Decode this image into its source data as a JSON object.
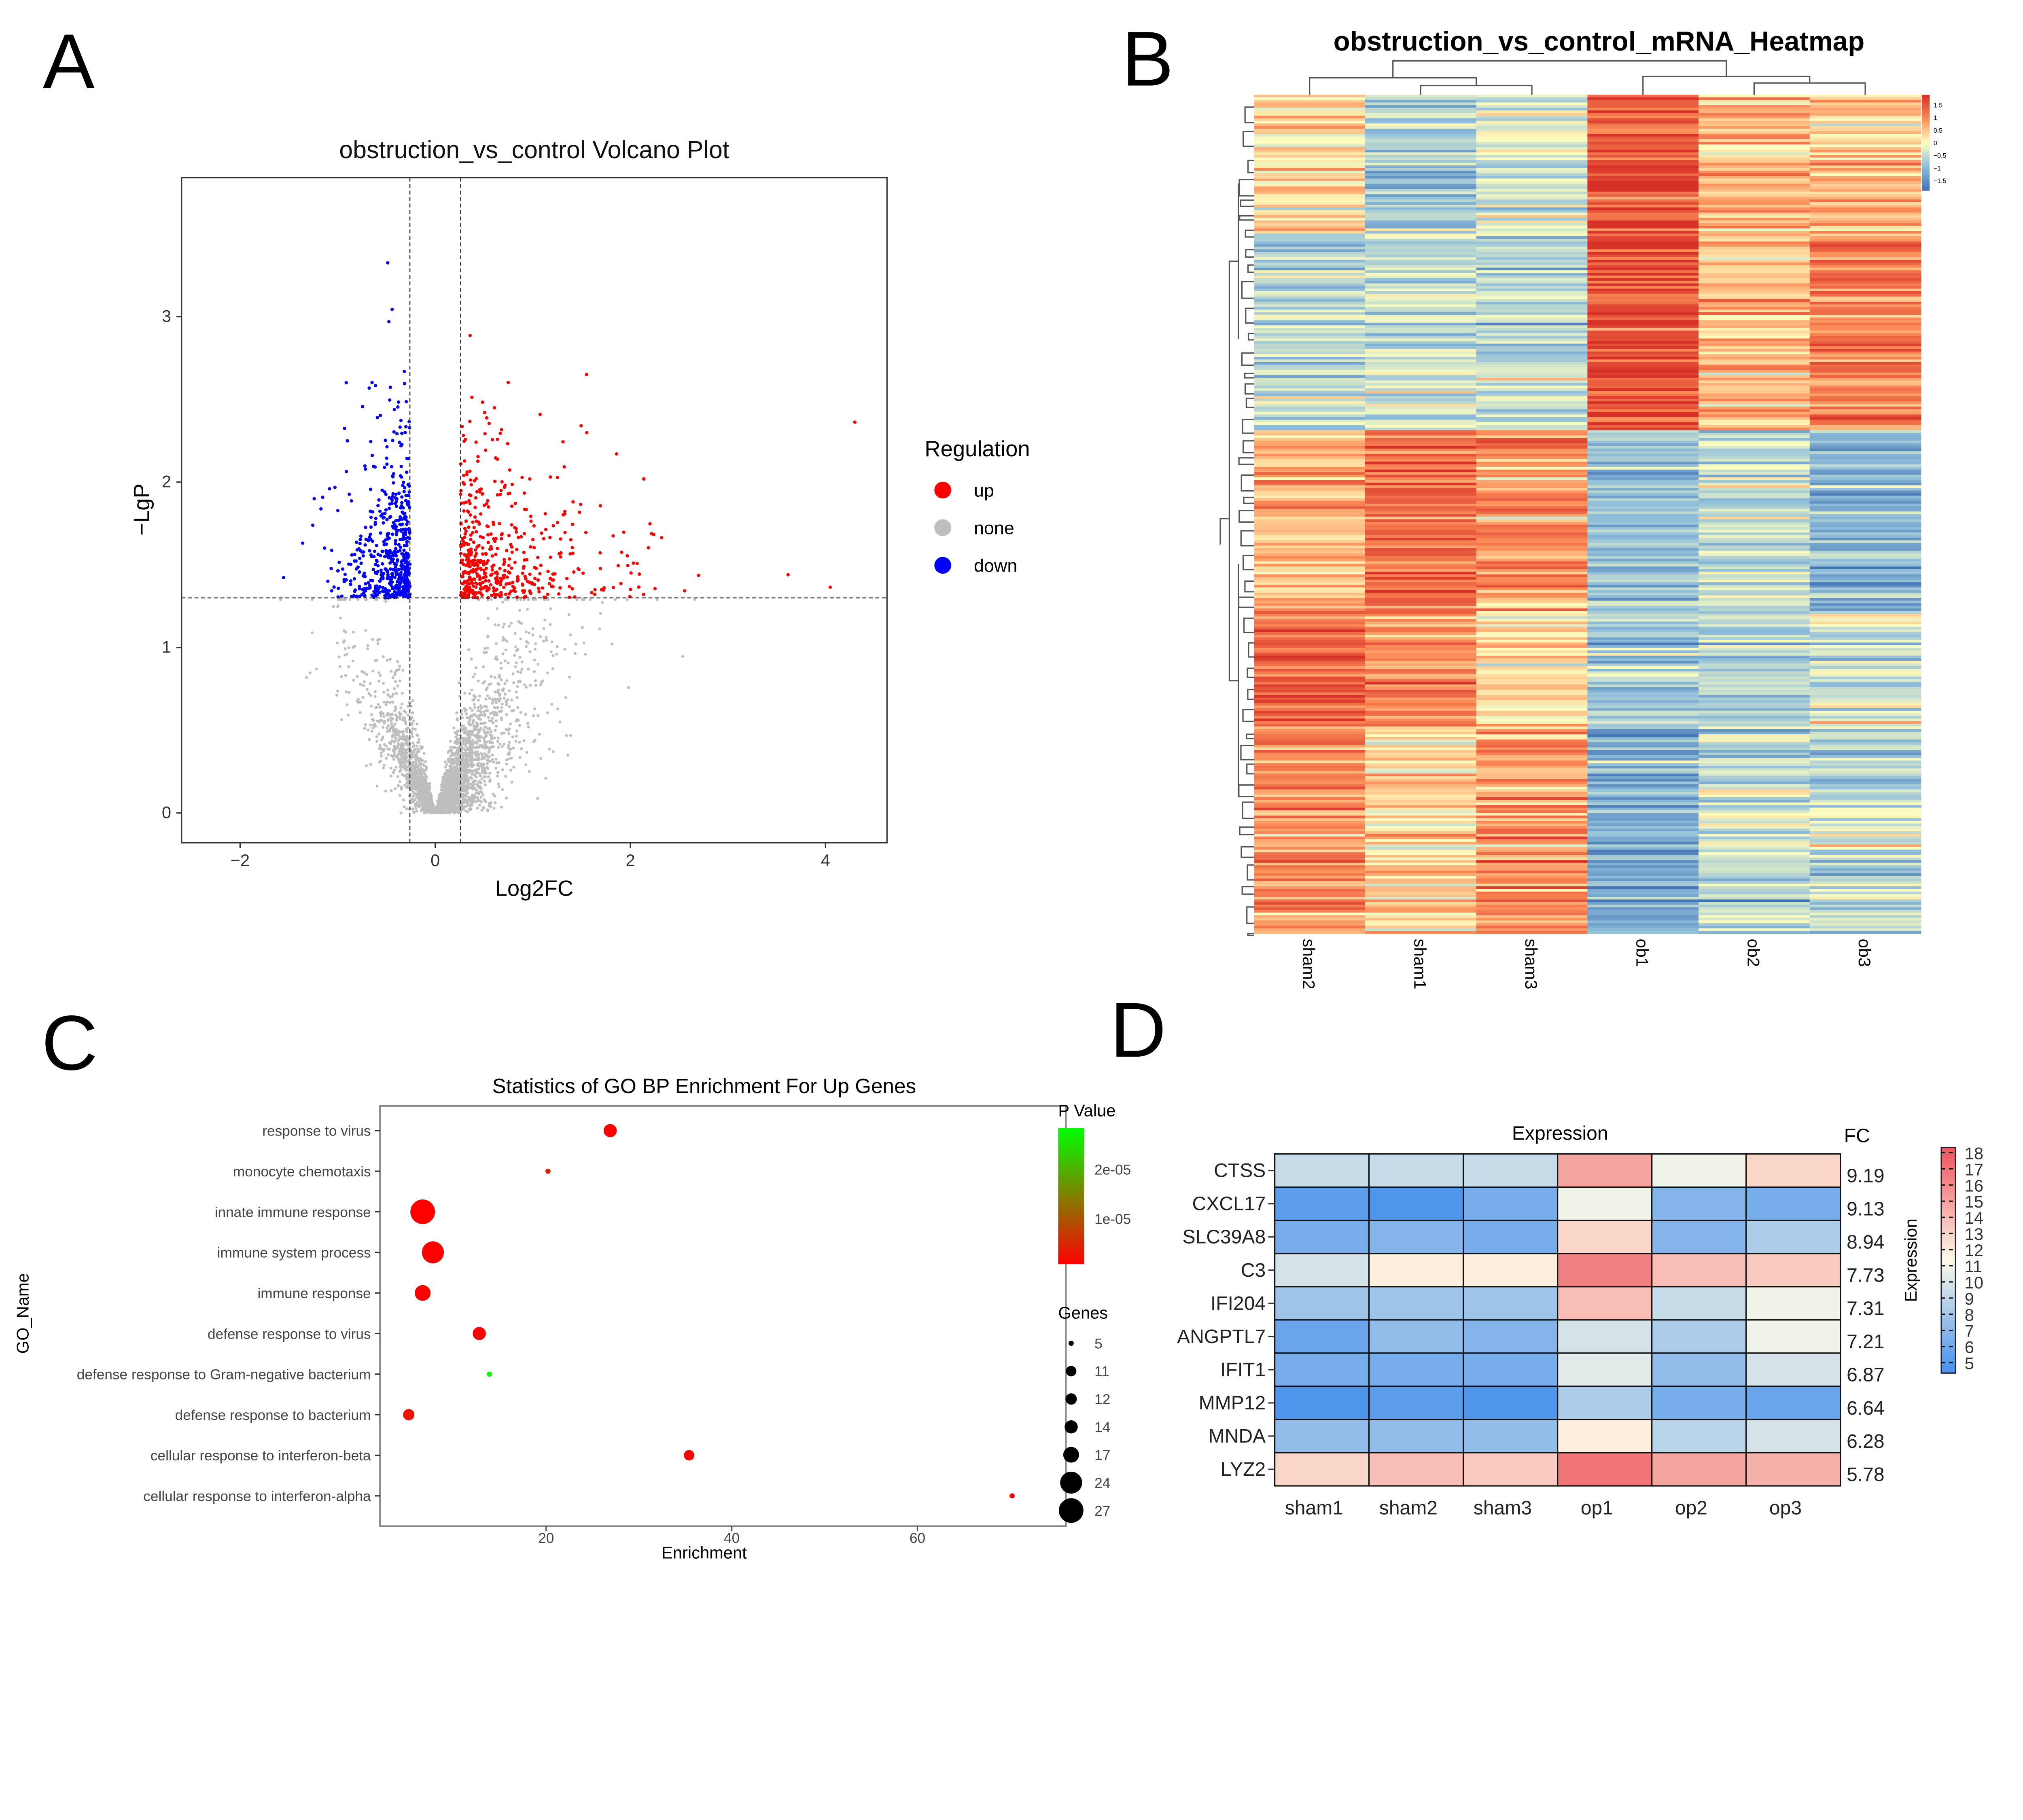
{
  "panels": {
    "a": "A",
    "b": "B",
    "c": "C",
    "d": "D"
  },
  "chart_data": [
    {
      "type": "scatter",
      "title": "obstruction_vs_control Volcano Plot",
      "xlabel": "Log2FC",
      "ylabel": "−LgP",
      "xlim": [
        -2.6,
        4.63
      ],
      "ylim": [
        -0.18,
        3.84
      ],
      "xticks": [
        "−2",
        "0",
        "2",
        "4"
      ],
      "xtick_values": [
        -2,
        0,
        2,
        4
      ],
      "yticks": [
        "0",
        "1",
        "2",
        "3"
      ],
      "ytick_values": [
        0,
        1,
        2,
        3
      ],
      "thresholds": {
        "log2fc": [
          -0.26,
          0.26
        ],
        "lgp": 1.3
      },
      "grid": false,
      "legend": {
        "title": "Regulation",
        "placement": "right",
        "entries": [
          {
            "label": "up",
            "color": "#ff0000"
          },
          {
            "label": "none",
            "color": "#bebebe"
          },
          {
            "label": "down",
            "color": "#0000ff"
          }
        ]
      }
    },
    {
      "type": "heatmap",
      "title": "obstruction_vs_control_mRNA_Heatmap",
      "columns": [
        "sham2",
        "sham1",
        "sham3",
        "ob1",
        "ob2",
        "ob3"
      ],
      "row_clusters_mean_z": [
        [
          0.3,
          -0.8,
          -0.3,
          1.6,
          0.6,
          0.6
        ],
        [
          -0.6,
          -0.5,
          -0.6,
          1.6,
          0.5,
          1.0
        ],
        [
          0.6,
          1.2,
          1.0,
          -0.9,
          -0.4,
          -1.0
        ],
        [
          1.3,
          1.0,
          0.3,
          -0.8,
          -0.6,
          -0.3
        ],
        [
          0.9,
          0.4,
          0.8,
          -1.2,
          -0.5,
          -0.6
        ]
      ],
      "colorbar": {
        "ticks": [
          "1.5",
          "1",
          "0.5",
          "0",
          "−0.5",
          "−1",
          "−1.5"
        ],
        "tick_values": [
          1.5,
          1,
          0.5,
          0,
          -0.5,
          -1,
          -1.5
        ],
        "range": [
          -1.9,
          1.9
        ],
        "colors": [
          "#4575b4",
          "#91bfdb",
          "#ffffbf",
          "#fc8d59",
          "#d73027"
        ]
      }
    },
    {
      "type": "scatter",
      "title": "Statistics of GO BP Enrichment For Up Genes",
      "xlabel": "Enrichment",
      "ylabel": "GO_Name",
      "xlim": [
        2.1,
        76
      ],
      "xticks": [
        "20",
        "40",
        "60"
      ],
      "xtick_values": [
        20,
        40,
        60
      ],
      "categories": [
        "response to virus",
        "monocyte chemotaxis",
        "innate immune response",
        "immune system process",
        "immune response",
        "defense response to virus",
        "defense response to Gram-negative bacterium",
        "defense response to bacterium",
        "cellular response to interferon-beta",
        "cellular response to interferon-alpha"
      ],
      "enrichment": [
        26.9,
        20.2,
        6.7,
        7.8,
        6.7,
        12.8,
        13.9,
        5.2,
        35.4,
        70.2
      ],
      "genes": [
        14,
        5,
        27,
        24,
        17,
        14,
        5,
        12,
        11,
        5
      ],
      "p_value": [
        2e-07,
        5e-06,
        1e-08,
        1e-08,
        2e-07,
        3e-07,
        2.8e-05,
        3e-06,
        3e-07,
        5e-07
      ],
      "legend": {
        "color_title": "P Value",
        "color_ticks": [
          "2e-05",
          "1e-05"
        ],
        "color_tick_values": [
          2e-05,
          1e-05
        ],
        "color_range": [
          8e-07,
          2.84e-05
        ],
        "colors": [
          "#ff0000",
          "#00ff00"
        ],
        "size_title": "Genes",
        "size_entries": [
          "5",
          "11",
          "12",
          "14",
          "17",
          "24",
          "27"
        ],
        "size_values": [
          5,
          11,
          12,
          14,
          17,
          24,
          27
        ],
        "placement": "right"
      }
    },
    {
      "type": "heatmap",
      "title": "Expression",
      "fc_header": "FC",
      "columns": [
        "sham1",
        "sham2",
        "sham3",
        "op1",
        "op2",
        "op3"
      ],
      "rows": [
        "CTSS",
        "CXCL17",
        "SLC39A8",
        "C3",
        "IFI204",
        "ANGPTL7",
        "IFIT1",
        "MMP12",
        "MNDA",
        "LYZ2"
      ],
      "fc": [
        "9.19",
        "9.13",
        "8.94",
        "7.73",
        "7.31",
        "7.21",
        "6.87",
        "6.64",
        "6.28",
        "5.78"
      ],
      "values": [
        [
          9.5,
          9.5,
          9.5,
          15,
          11,
          13
        ],
        [
          5.5,
          5,
          6.5,
          11,
          7,
          6.5
        ],
        [
          6.5,
          7,
          6.5,
          13,
          7,
          8.5
        ],
        [
          10,
          12,
          12,
          16.5,
          14,
          13.5
        ],
        [
          8,
          8,
          8,
          14,
          9.5,
          11
        ],
        [
          6,
          7.5,
          7,
          10,
          8.5,
          11
        ],
        [
          6.5,
          6.5,
          6.5,
          10.5,
          7.5,
          10
        ],
        [
          5,
          5.5,
          5,
          8.5,
          6.5,
          6
        ],
        [
          7.5,
          7.5,
          7.5,
          12,
          9,
          10
        ],
        [
          13,
          14,
          13.5,
          17,
          15,
          14.5
        ]
      ],
      "colorbar": {
        "title": "Expression",
        "ticks": [
          "18",
          "17",
          "16",
          "15",
          "14",
          "13",
          "12",
          "11",
          "10",
          "9",
          "8",
          "7",
          "6",
          "5"
        ],
        "tick_values": [
          18,
          17,
          16,
          15,
          14,
          13,
          12,
          11,
          10,
          9,
          8,
          7,
          6,
          5
        ],
        "colors": [
          "#4f95ec",
          "#fdfbe8",
          "#ef5b63"
        ]
      }
    }
  ]
}
